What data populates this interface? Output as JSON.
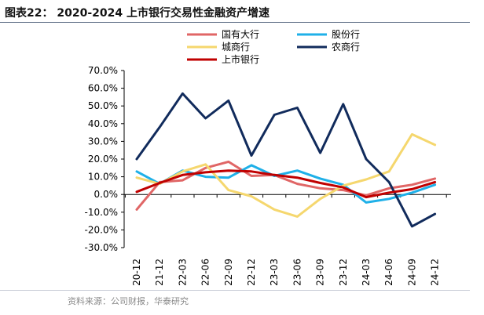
{
  "header": {
    "title": "图表22： 2020-2024 上市银行交易性金融资产增速",
    "source": "资料来源：公司财报，华泰研究"
  },
  "chart_data": {
    "type": "line",
    "title": "2020-2024 上市银行交易性金融资产增速",
    "xlabel": "",
    "ylabel": "",
    "x": [
      "20-12",
      "21-12",
      "22-03",
      "22-06",
      "22-09",
      "22-12",
      "23-03",
      "23-06",
      "23-09",
      "23-12",
      "24-03",
      "24-06",
      "24-09",
      "24-12"
    ],
    "ylim": [
      -30,
      70
    ],
    "yticks": [
      "70.0%",
      "60.0%",
      "50.0%",
      "40.0%",
      "30.0%",
      "20.0%",
      "10.0%",
      "0.0%",
      "-10.0%",
      "-20.0%",
      "-30.0%"
    ],
    "grid": false,
    "legend_position": "top",
    "series": [
      {
        "name": "国有大行",
        "color": "#e06666",
        "values": [
          -8.5,
          7,
          8,
          15,
          18.5,
          10.5,
          11,
          6,
          3.5,
          2.5,
          -0.5,
          3.5,
          5.5,
          9
        ]
      },
      {
        "name": "股份行",
        "color": "#1fb0e8",
        "values": [
          13,
          6,
          13.5,
          10,
          9.5,
          16.5,
          10.5,
          13.5,
          9,
          5.5,
          -4.5,
          -2.5,
          1,
          5.5
        ]
      },
      {
        "name": "城商行",
        "color": "#f5d76e",
        "values": [
          9.5,
          6,
          13,
          17,
          2.5,
          -1,
          -8.5,
          -12.5,
          -2.5,
          5,
          8.5,
          13,
          34,
          28
        ]
      },
      {
        "name": "农商行",
        "color": "#112b5c",
        "values": [
          20,
          38,
          57,
          43,
          53,
          22,
          45,
          49,
          23.5,
          51,
          20,
          7,
          -18,
          -11
        ]
      },
      {
        "name": "上市银行",
        "color": "#c00000",
        "values": [
          1.5,
          6.5,
          11,
          12.5,
          13.5,
          13,
          11,
          9.5,
          6.5,
          4,
          -1.5,
          1,
          3,
          7
        ]
      }
    ]
  }
}
